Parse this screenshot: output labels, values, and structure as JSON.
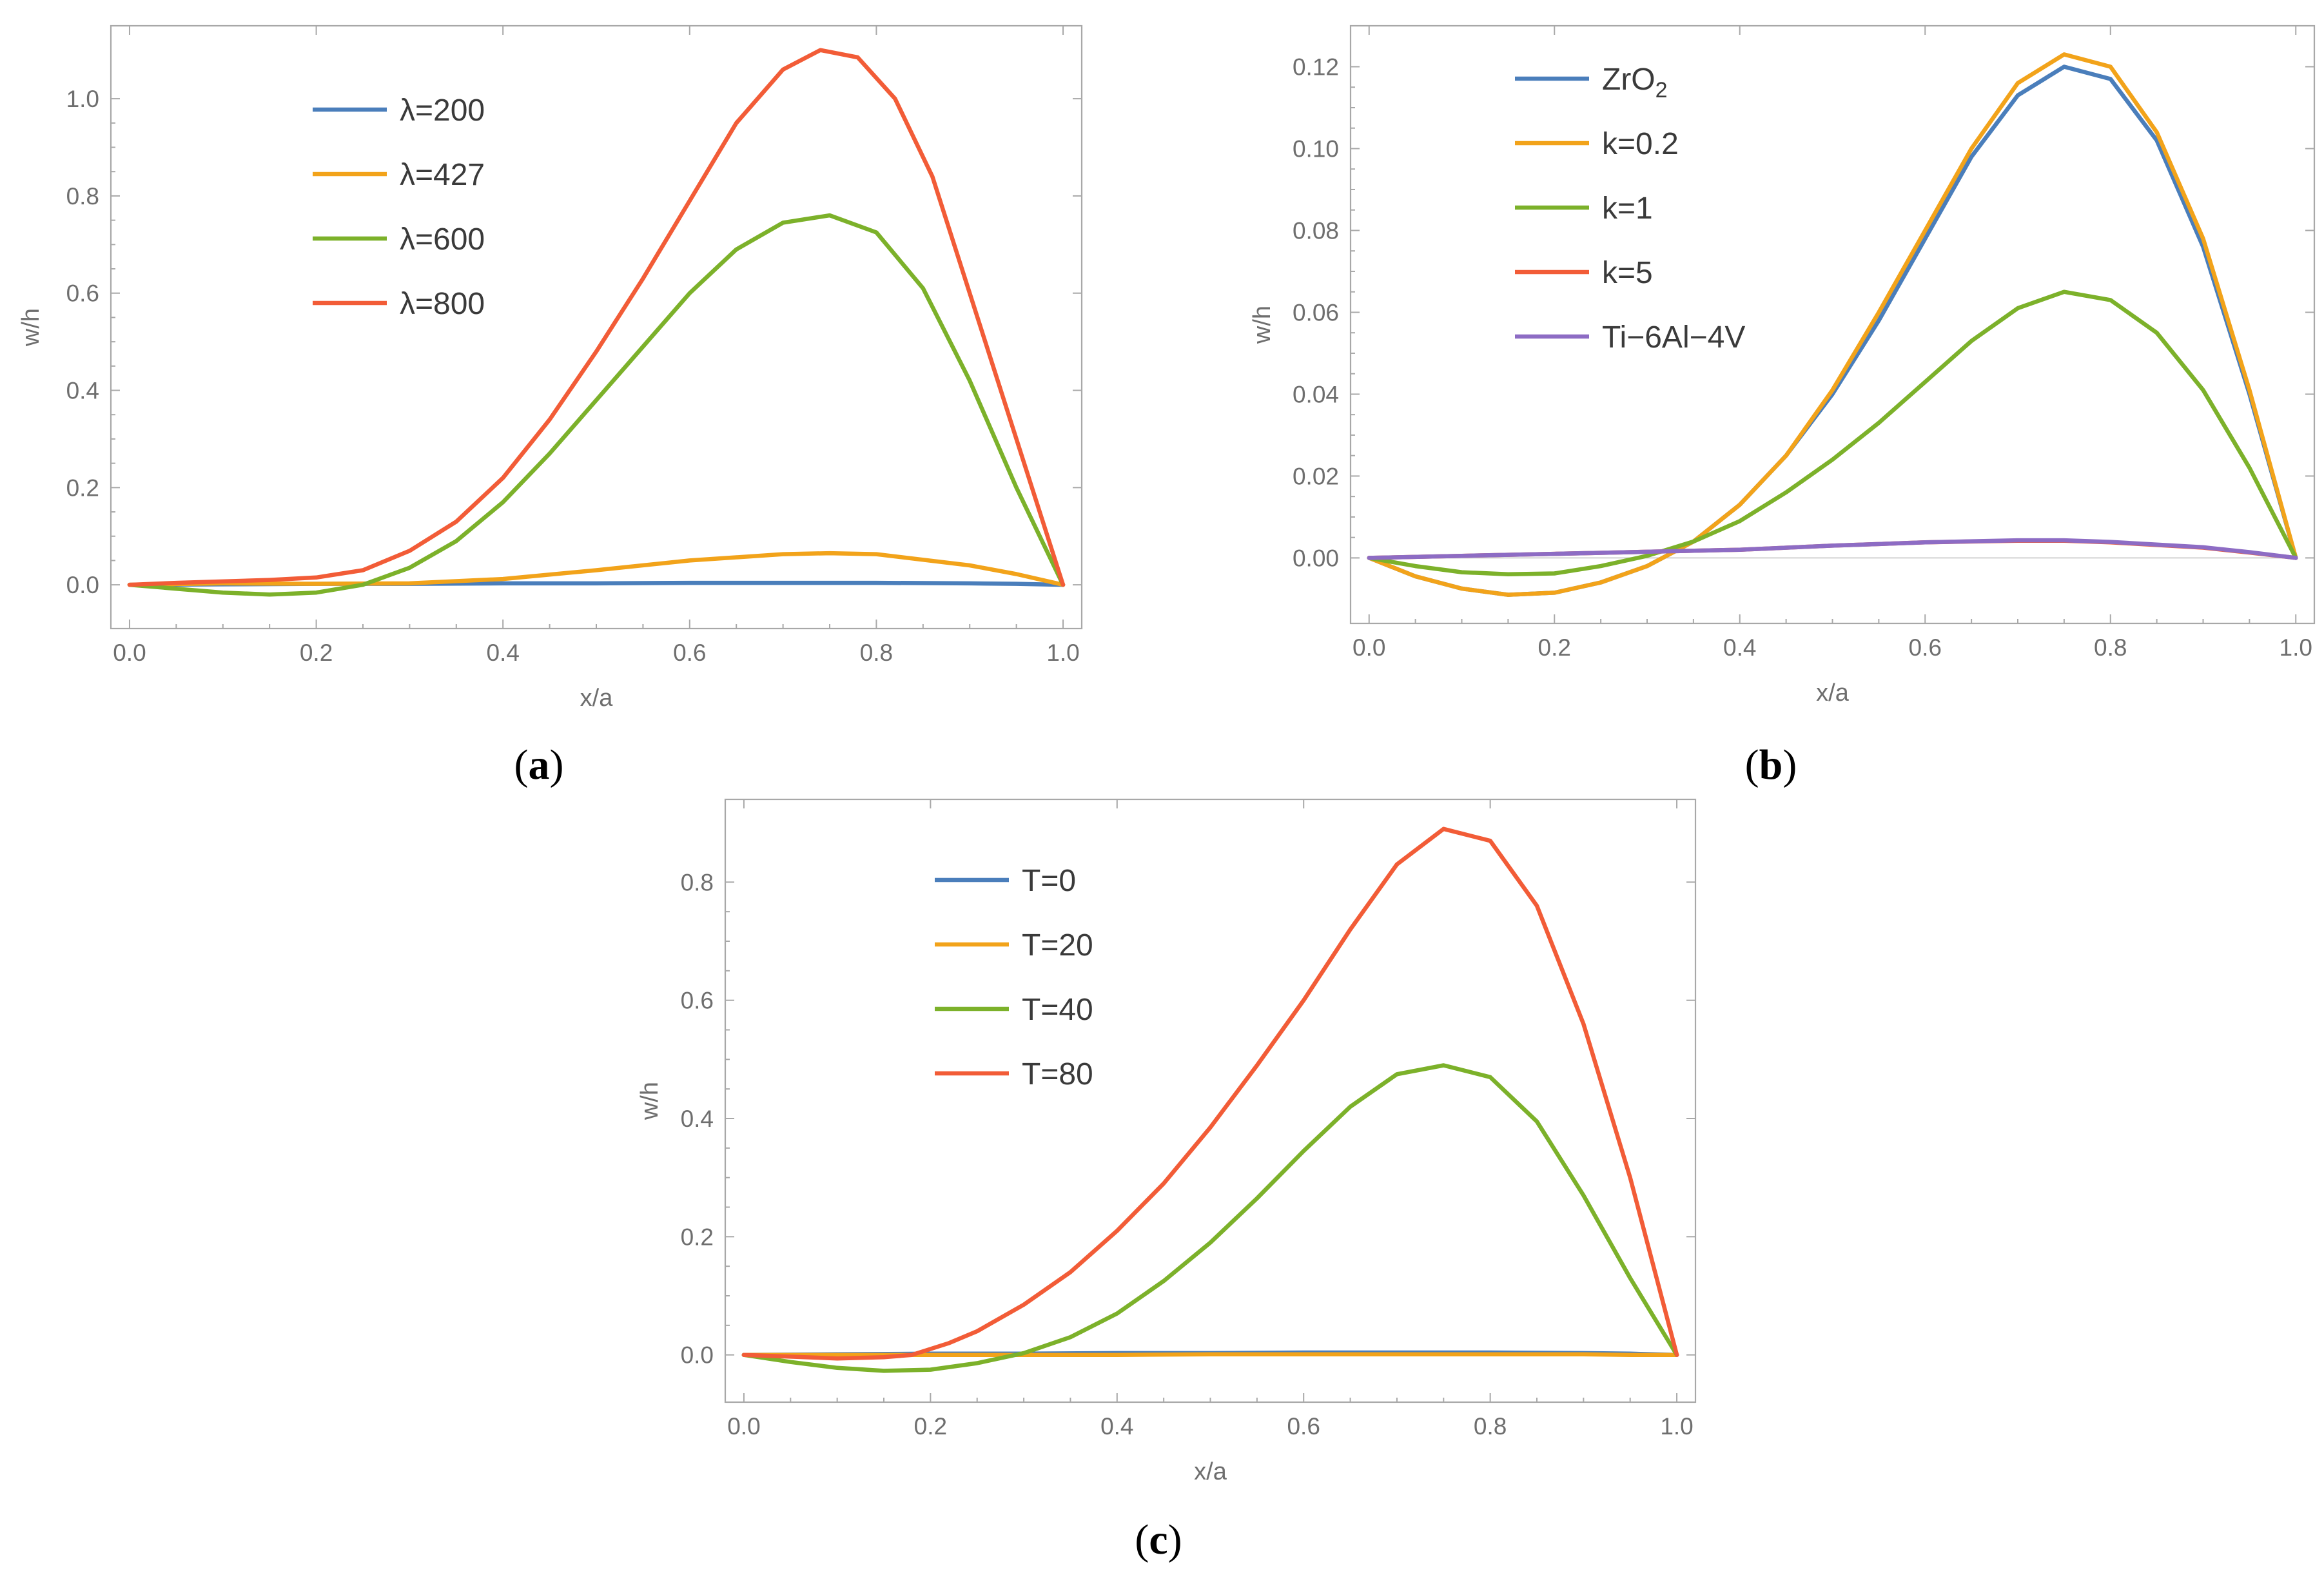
{
  "colors": {
    "blue": "#4a7ebb",
    "orange": "#f2a31a",
    "green": "#7cb12a",
    "red": "#f25c37",
    "purple": "#8d6cc4"
  },
  "chart_data": [
    {
      "id": "a",
      "type": "line",
      "caption_letter": "a",
      "xlabel": "x/a",
      "ylabel": "w/h",
      "xlim": [
        -0.02,
        1.02
      ],
      "ylim": [
        -0.09,
        1.15
      ],
      "xticks": [
        0.0,
        0.2,
        0.4,
        0.6,
        0.8,
        1.0
      ],
      "xtick_labels": [
        "0.0",
        "0.2",
        "0.4",
        "0.6",
        "0.8",
        "1.0"
      ],
      "yticks": [
        0.0,
        0.2,
        0.4,
        0.6,
        0.8,
        1.0
      ],
      "ytick_labels": [
        "0.0",
        "0.2",
        "0.4",
        "0.6",
        "0.8",
        "1.0"
      ],
      "zero_line": false,
      "series": [
        {
          "name": "λ=200",
          "color": "#4a7ebb",
          "x": [
            0,
            0.1,
            0.2,
            0.3,
            0.4,
            0.5,
            0.6,
            0.7,
            0.75,
            0.8,
            0.9,
            0.95,
            1.0
          ],
          "y": [
            0,
            0.001,
            0.002,
            0.002,
            0.003,
            0.003,
            0.004,
            0.004,
            0.004,
            0.004,
            0.003,
            0.002,
            0
          ]
        },
        {
          "name": "λ=427",
          "color": "#f2a31a",
          "x": [
            0,
            0.1,
            0.2,
            0.3,
            0.4,
            0.5,
            0.6,
            0.7,
            0.75,
            0.8,
            0.9,
            0.95,
            1.0
          ],
          "y": [
            0,
            0.003,
            0.002,
            0.003,
            0.012,
            0.03,
            0.05,
            0.063,
            0.065,
            0.063,
            0.04,
            0.022,
            0
          ]
        },
        {
          "name": "λ=600",
          "color": "#7cb12a",
          "x": [
            0,
            0.05,
            0.1,
            0.15,
            0.2,
            0.25,
            0.3,
            0.35,
            0.4,
            0.45,
            0.5,
            0.55,
            0.6,
            0.65,
            0.7,
            0.75,
            0.8,
            0.85,
            0.9,
            0.95,
            1.0
          ],
          "y": [
            0,
            -0.008,
            -0.016,
            -0.02,
            -0.016,
            0.0,
            0.035,
            0.09,
            0.17,
            0.27,
            0.38,
            0.49,
            0.6,
            0.69,
            0.745,
            0.76,
            0.725,
            0.61,
            0.42,
            0.2,
            0
          ]
        },
        {
          "name": "λ=800",
          "color": "#f25c37",
          "x": [
            0,
            0.05,
            0.1,
            0.15,
            0.2,
            0.25,
            0.3,
            0.35,
            0.4,
            0.45,
            0.5,
            0.55,
            0.6,
            0.65,
            0.7,
            0.74,
            0.78,
            0.82,
            0.86,
            0.9,
            0.95,
            1.0
          ],
          "y": [
            0,
            0.004,
            0.007,
            0.01,
            0.015,
            0.03,
            0.07,
            0.13,
            0.22,
            0.34,
            0.48,
            0.63,
            0.79,
            0.95,
            1.06,
            1.1,
            1.085,
            1.0,
            0.84,
            0.6,
            0.3,
            0
          ]
        }
      ]
    },
    {
      "id": "b",
      "type": "line",
      "caption_letter": "b",
      "xlabel": "x/a",
      "ylabel": "w/h",
      "xlim": [
        -0.02,
        1.02
      ],
      "ylim": [
        -0.016,
        0.13
      ],
      "xticks": [
        0.0,
        0.2,
        0.4,
        0.6,
        0.8,
        1.0
      ],
      "xtick_labels": [
        "0.0",
        "0.2",
        "0.4",
        "0.6",
        "0.8",
        "1.0"
      ],
      "yticks": [
        0.0,
        0.02,
        0.04,
        0.06,
        0.08,
        0.1,
        0.12
      ],
      "ytick_labels": [
        "0.00",
        "0.02",
        "0.04",
        "0.06",
        "0.08",
        "0.10",
        "0.12"
      ],
      "zero_line": true,
      "series": [
        {
          "name": "ZrO",
          "name_subscript": "2",
          "color": "#4a7ebb",
          "x": [
            0,
            0.05,
            0.1,
            0.15,
            0.2,
            0.25,
            0.3,
            0.35,
            0.4,
            0.45,
            0.5,
            0.55,
            0.6,
            0.65,
            0.7,
            0.75,
            0.8,
            0.85,
            0.9,
            0.95,
            1.0
          ],
          "y": [
            0,
            -0.0045,
            -0.0075,
            -0.009,
            -0.0085,
            -0.006,
            -0.002,
            0.004,
            0.013,
            0.025,
            0.04,
            0.058,
            0.078,
            0.098,
            0.113,
            0.12,
            0.117,
            0.102,
            0.076,
            0.04,
            0
          ]
        },
        {
          "name": "k=0.2",
          "color": "#f2a31a",
          "x": [
            0,
            0.05,
            0.1,
            0.15,
            0.2,
            0.25,
            0.3,
            0.35,
            0.4,
            0.45,
            0.5,
            0.55,
            0.6,
            0.65,
            0.7,
            0.75,
            0.8,
            0.85,
            0.9,
            0.95,
            1.0
          ],
          "y": [
            0,
            -0.0045,
            -0.0075,
            -0.009,
            -0.0085,
            -0.006,
            -0.002,
            0.004,
            0.013,
            0.025,
            0.041,
            0.06,
            0.08,
            0.1,
            0.116,
            0.123,
            0.12,
            0.104,
            0.078,
            0.041,
            0
          ]
        },
        {
          "name": "k=1",
          "color": "#7cb12a",
          "x": [
            0,
            0.05,
            0.1,
            0.15,
            0.2,
            0.25,
            0.3,
            0.35,
            0.4,
            0.45,
            0.5,
            0.55,
            0.6,
            0.65,
            0.7,
            0.75,
            0.8,
            0.85,
            0.9,
            0.95,
            1.0
          ],
          "y": [
            0,
            -0.002,
            -0.0035,
            -0.004,
            -0.0038,
            -0.002,
            0.0005,
            0.004,
            0.009,
            0.016,
            0.024,
            0.033,
            0.043,
            0.053,
            0.061,
            0.065,
            0.063,
            0.055,
            0.041,
            0.022,
            0
          ]
        },
        {
          "name": "k=5",
          "color": "#f25c37",
          "x": [
            0,
            0.1,
            0.2,
            0.3,
            0.4,
            0.5,
            0.6,
            0.7,
            0.75,
            0.8,
            0.9,
            0.95,
            1.0
          ],
          "y": [
            0,
            0.0005,
            0.001,
            0.0015,
            0.002,
            0.003,
            0.0038,
            0.0042,
            0.0042,
            0.0038,
            0.0025,
            0.0013,
            0
          ]
        },
        {
          "name": "Ti−6Al−4V",
          "color": "#8d6cc4",
          "x": [
            0,
            0.1,
            0.2,
            0.3,
            0.4,
            0.5,
            0.6,
            0.7,
            0.75,
            0.8,
            0.9,
            0.95,
            1.0
          ],
          "y": [
            0,
            0.0005,
            0.001,
            0.0015,
            0.002,
            0.003,
            0.0038,
            0.0043,
            0.0043,
            0.0039,
            0.0026,
            0.0014,
            0
          ]
        }
      ]
    },
    {
      "id": "c",
      "type": "line",
      "caption_letter": "c",
      "xlabel": "x/a",
      "ylabel": "w/h",
      "xlim": [
        -0.02,
        1.02
      ],
      "ylim": [
        -0.08,
        0.94
      ],
      "xticks": [
        0.0,
        0.2,
        0.4,
        0.6,
        0.8,
        1.0
      ],
      "xtick_labels": [
        "0.0",
        "0.2",
        "0.4",
        "0.6",
        "0.8",
        "1.0"
      ],
      "yticks": [
        0.0,
        0.2,
        0.4,
        0.6,
        0.8
      ],
      "ytick_labels": [
        "0.0",
        "0.2",
        "0.4",
        "0.6",
        "0.8"
      ],
      "zero_line": false,
      "series": [
        {
          "name": "T=0",
          "color": "#4a7ebb",
          "x": [
            0,
            0.1,
            0.2,
            0.3,
            0.4,
            0.5,
            0.6,
            0.7,
            0.75,
            0.8,
            0.9,
            0.95,
            1.0
          ],
          "y": [
            0,
            0.001,
            0.002,
            0.002,
            0.003,
            0.003,
            0.004,
            0.004,
            0.004,
            0.004,
            0.003,
            0.002,
            0
          ]
        },
        {
          "name": "T=20",
          "color": "#f2a31a",
          "x": [
            0,
            0.1,
            0.2,
            0.3,
            0.4,
            0.5,
            0.6,
            0.7,
            0.75,
            0.8,
            0.9,
            0.95,
            1.0
          ],
          "y": [
            0,
            0.0,
            0.0,
            0.0,
            0.0,
            0.001,
            0.001,
            0.001,
            0.001,
            0.001,
            0.001,
            0.0,
            0
          ]
        },
        {
          "name": "T=40",
          "color": "#7cb12a",
          "x": [
            0,
            0.05,
            0.1,
            0.15,
            0.2,
            0.25,
            0.3,
            0.35,
            0.4,
            0.45,
            0.5,
            0.55,
            0.6,
            0.65,
            0.7,
            0.75,
            0.8,
            0.85,
            0.9,
            0.95,
            1.0
          ],
          "y": [
            0,
            -0.012,
            -0.022,
            -0.027,
            -0.025,
            -0.014,
            0.003,
            0.03,
            0.07,
            0.125,
            0.19,
            0.265,
            0.345,
            0.42,
            0.475,
            0.49,
            0.47,
            0.395,
            0.27,
            0.13,
            0
          ]
        },
        {
          "name": "T=80",
          "color": "#f25c37",
          "x": [
            0,
            0.05,
            0.1,
            0.15,
            0.18,
            0.22,
            0.25,
            0.3,
            0.35,
            0.4,
            0.45,
            0.5,
            0.55,
            0.6,
            0.65,
            0.7,
            0.75,
            0.8,
            0.85,
            0.9,
            0.95,
            1.0
          ],
          "y": [
            0,
            -0.003,
            -0.006,
            -0.004,
            0.0,
            0.02,
            0.04,
            0.085,
            0.14,
            0.21,
            0.29,
            0.385,
            0.49,
            0.6,
            0.72,
            0.83,
            0.89,
            0.87,
            0.76,
            0.56,
            0.3,
            0
          ]
        }
      ]
    }
  ]
}
